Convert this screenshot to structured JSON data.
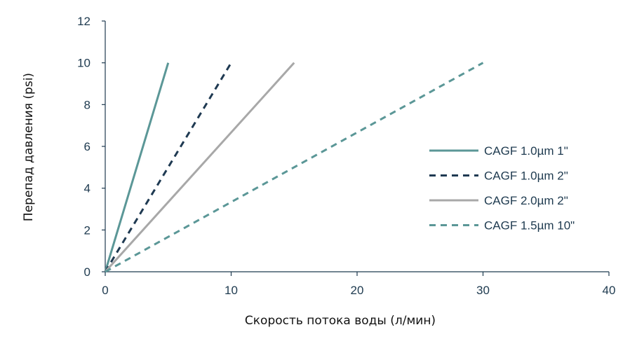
{
  "chart_data": {
    "type": "line",
    "xlabel": "Скорость потока воды (л/мин)",
    "ylabel": "Перепад давления (psi)",
    "xlim": [
      0,
      40
    ],
    "ylim": [
      0,
      12
    ],
    "xticks": [
      0,
      10,
      20,
      30,
      40
    ],
    "yticks": [
      0,
      2,
      4,
      6,
      8,
      10,
      12
    ],
    "xtick_labels": [
      "0",
      "10",
      "20",
      "30",
      "40"
    ],
    "ytick_labels": [
      "0",
      "2",
      "4",
      "6",
      "8",
      "10",
      "12"
    ],
    "grid": false,
    "legend_position": "right",
    "series": [
      {
        "name": "CAGF 1.0µm 1\"",
        "x": [
          0,
          5
        ],
        "y": [
          0,
          10
        ],
        "color": "#5b9797",
        "dash": "solid"
      },
      {
        "name": "CAGF 1.0µm 2\"",
        "x": [
          0,
          10
        ],
        "y": [
          0,
          10
        ],
        "color": "#1f3a52",
        "dash": "dashed"
      },
      {
        "name": "CAGF 2.0µm 2\"",
        "x": [
          0,
          15
        ],
        "y": [
          0,
          10
        ],
        "color": "#a8a8a8",
        "dash": "solid"
      },
      {
        "name": "CAGF 1.5µm 10\"",
        "x": [
          0,
          30
        ],
        "y": [
          0,
          10
        ],
        "color": "#5b9797",
        "dash": "dashed"
      }
    ]
  }
}
